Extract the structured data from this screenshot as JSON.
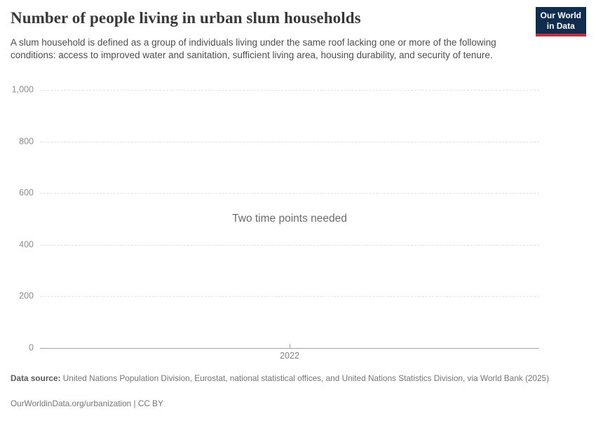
{
  "header": {
    "title": "Number of people living in urban slum households",
    "subtitle": "A slum household is defined as a group of individuals living under the same roof lacking one or more of the following conditions: access to improved water and sanitation, sufficient living area, housing durability, and security of tenure.",
    "logo": {
      "line1": "Our World",
      "line2": "in Data"
    }
  },
  "chart": {
    "empty_message": "Two time points needed"
  },
  "chart_data": {
    "type": "line",
    "title": "Number of people living in urban slum households",
    "note": "Two time points needed (no data series plotted)",
    "series": [],
    "x": {
      "ticks": [
        2022
      ],
      "tick_labels": [
        "2022"
      ]
    },
    "y": {
      "range": [
        0,
        1000
      ],
      "ticks": [
        0,
        200,
        400,
        600,
        800,
        1000
      ],
      "tick_labels": [
        "0",
        "200",
        "400",
        "600",
        "800",
        "1,000"
      ],
      "gridlines": "dashed"
    },
    "legend": "none"
  },
  "footer": {
    "source_label": "Data source:",
    "source_text": "United Nations Population Division, Eurostat, national statistical offices, and United Nations Statistics Division, via World Bank (2025)",
    "citation": "OurWorldinData.org/urbanization | CC BY"
  },
  "colors": {
    "logo_background": "#102d4e",
    "logo_accent_red": "#c0313d",
    "title_text": "#383838",
    "subtitle_text": "#4e4e4e",
    "axis_tick_text": "#8c8c8c",
    "gridline": "#e2e2e2",
    "axis_line": "#a3a3a3",
    "empty_message_text": "#6b6b6b",
    "footer_text": "#757575"
  }
}
